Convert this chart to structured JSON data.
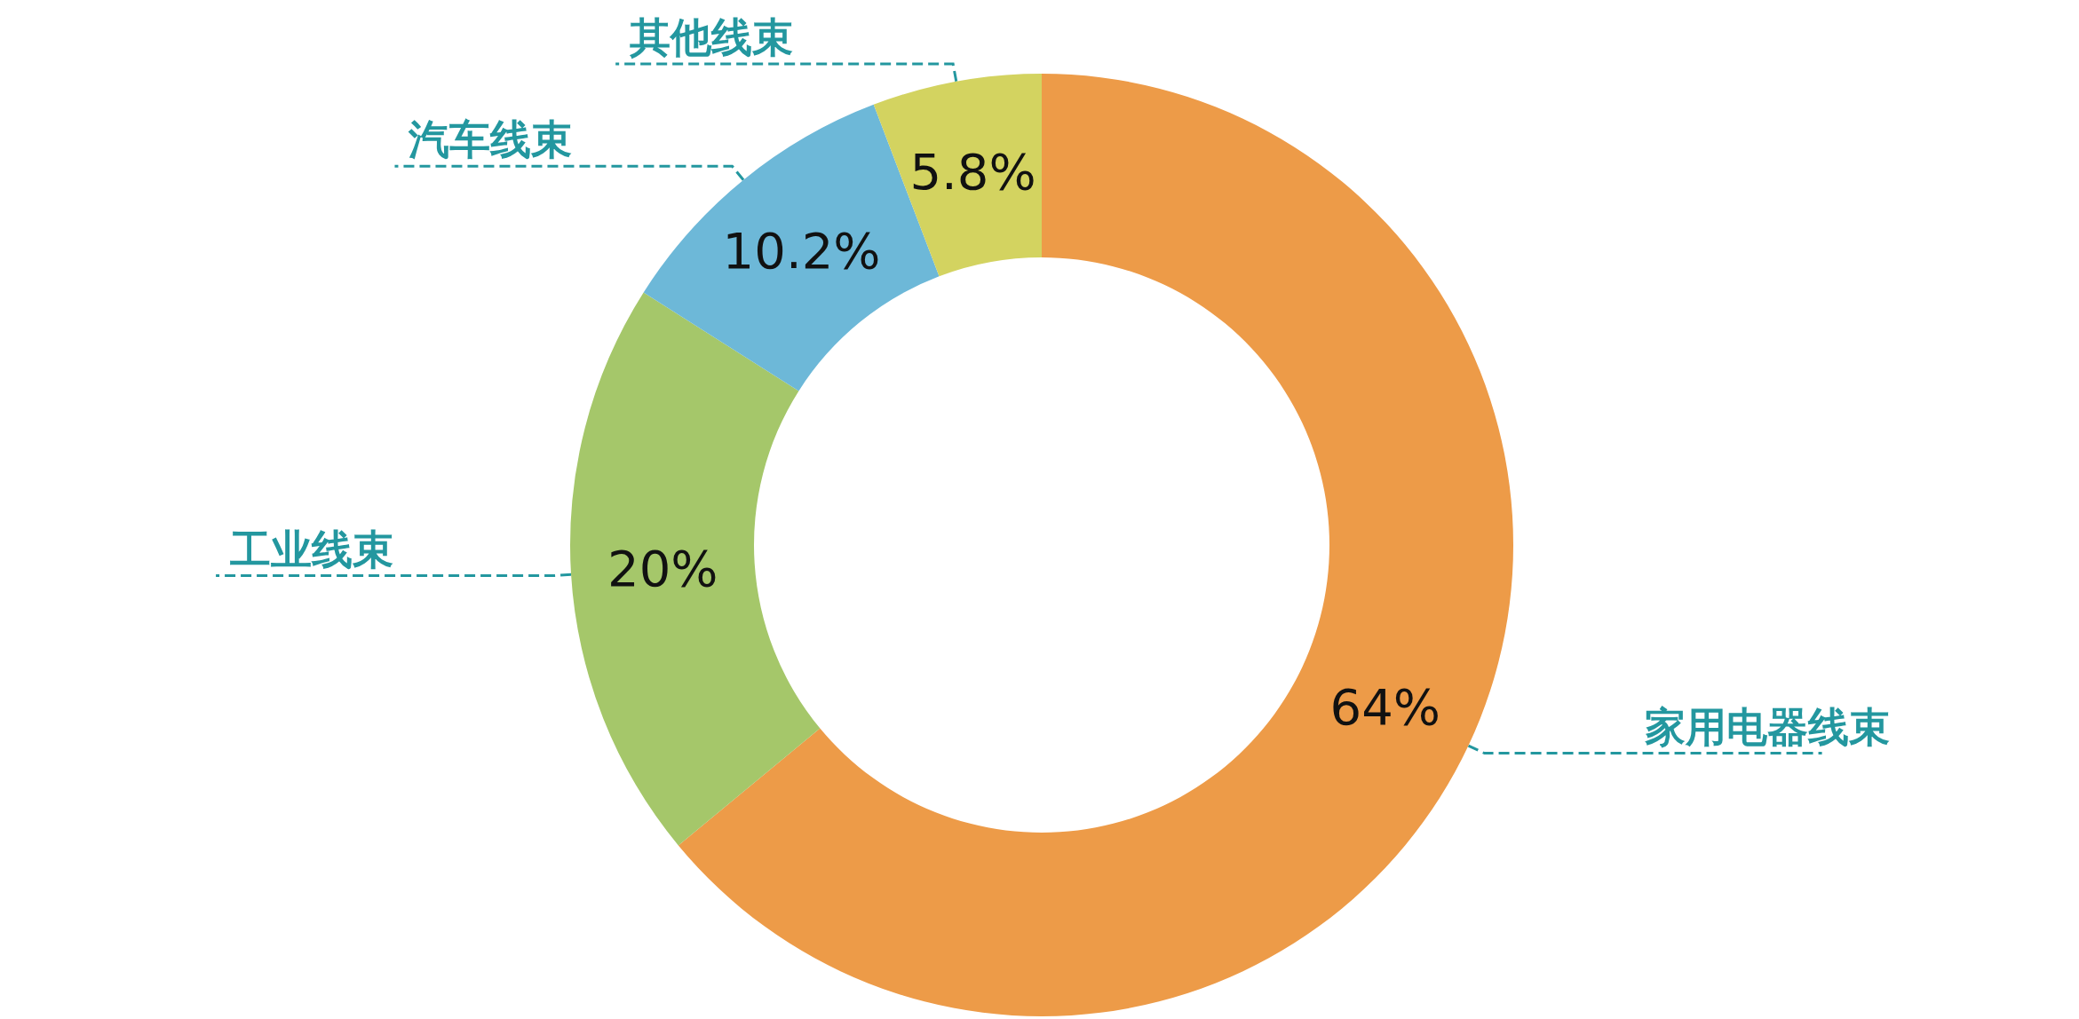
{
  "chart_data": {
    "type": "donut",
    "categories": [
      "家用电器线束",
      "工业线束",
      "汽车线束",
      "其他线束"
    ],
    "values": [
      64,
      20,
      10.2,
      5.8
    ],
    "colors": [
      "#ed9b48",
      "#a5c76a",
      "#6db8d8",
      "#d3d360"
    ],
    "value_labels": [
      "64%",
      "20%",
      "10.2%",
      "5.8%"
    ],
    "legend": false
  }
}
